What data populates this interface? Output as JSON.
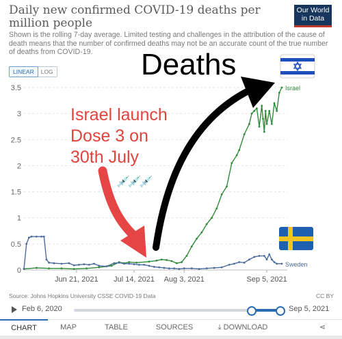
{
  "header": {
    "title": "Daily new confirmed COVID-19 deaths per million people",
    "subtitle": "Shown is the rolling 7-day average. Limited testing and challenges in the attribution of the cause of death means that the number of confirmed deaths may not be an accurate count of the true number of deaths from COVID-19.",
    "logo_line1": "Our World",
    "logo_line2": "in Data"
  },
  "scale_toggle": {
    "linear": "LINEAR",
    "log": "LOG",
    "selected": "LINEAR"
  },
  "chart_data": {
    "type": "line",
    "title": "Daily new confirmed COVID-19 deaths per million people",
    "ylim": [
      0,
      3.5
    ],
    "y_ticks": [
      "0",
      "0.5",
      "1",
      "1.5",
      "2",
      "2.5",
      "3",
      "3.5"
    ],
    "x_ticks": [
      {
        "label": "Jun 21, 2021",
        "day": 21
      },
      {
        "label": "Jul 14, 2021",
        "day": 44
      },
      {
        "label": "Aug 3, 2021",
        "day": 64
      },
      {
        "label": "Sep 5, 2021",
        "day": 97
      }
    ],
    "x_range_days": [
      0,
      97
    ],
    "x_range_labels": [
      "Jun 1, 2021",
      "Sep 5, 2021"
    ],
    "grid": true,
    "series": [
      {
        "name": "Israel",
        "color": "#2e8b3a",
        "points": [
          [
            0,
            0.02
          ],
          [
            5,
            0.04
          ],
          [
            10,
            0.03
          ],
          [
            15,
            0.03
          ],
          [
            20,
            0.02
          ],
          [
            25,
            0.03
          ],
          [
            30,
            0.05
          ],
          [
            35,
            0.08
          ],
          [
            38,
            0.15
          ],
          [
            40,
            0.13
          ],
          [
            42,
            0.15
          ],
          [
            45,
            0.14
          ],
          [
            50,
            0.16
          ],
          [
            53,
            0.18
          ],
          [
            55,
            0.2
          ],
          [
            57,
            0.19
          ],
          [
            59,
            0.17
          ],
          [
            61,
            0.13
          ],
          [
            63,
            0.15
          ],
          [
            65,
            0.27
          ],
          [
            67,
            0.45
          ],
          [
            69,
            0.6
          ],
          [
            71,
            0.72
          ],
          [
            73,
            0.88
          ],
          [
            75,
            1.0
          ],
          [
            77,
            1.18
          ],
          [
            79,
            1.45
          ],
          [
            81,
            1.6
          ],
          [
            83,
            2.05
          ],
          [
            85,
            2.2
          ],
          [
            86,
            2.3
          ],
          [
            88,
            2.6
          ],
          [
            90,
            2.8
          ],
          [
            91,
            3.0
          ],
          [
            92,
            3.05
          ],
          [
            93,
            3.1
          ],
          [
            94,
            2.75
          ],
          [
            95,
            3.15
          ],
          [
            95.5,
            2.9
          ],
          [
            96,
            2.65
          ],
          [
            96.5,
            3.05
          ],
          [
            97,
            2.8
          ],
          [
            98,
            3.05
          ],
          [
            99,
            2.8
          ],
          [
            100,
            3.2
          ],
          [
            101,
            3.05
          ],
          [
            102,
            3.4
          ],
          [
            103,
            3.5
          ]
        ]
      },
      {
        "name": "Sweden",
        "color": "#4c6a9c",
        "points": [
          [
            0,
            0.02
          ],
          [
            1,
            0.5
          ],
          [
            2,
            0.62
          ],
          [
            3,
            0.64
          ],
          [
            5,
            0.64
          ],
          [
            7,
            0.64
          ],
          [
            8,
            0.64
          ],
          [
            9,
            0.2
          ],
          [
            10,
            0.14
          ],
          [
            12,
            0.13
          ],
          [
            15,
            0.12
          ],
          [
            18,
            0.13
          ],
          [
            20,
            0.09
          ],
          [
            22,
            0.1
          ],
          [
            24,
            0.11
          ],
          [
            26,
            0.1
          ],
          [
            28,
            0.12
          ],
          [
            30,
            0.08
          ],
          [
            33,
            0.07
          ],
          [
            36,
            0.13
          ],
          [
            38,
            0.14
          ],
          [
            40,
            0.12
          ],
          [
            42,
            0.12
          ],
          [
            44,
            0.11
          ],
          [
            46,
            0.1
          ],
          [
            48,
            0.1
          ],
          [
            50,
            0.08
          ],
          [
            52,
            0.06
          ],
          [
            54,
            0.05
          ],
          [
            56,
            0.04
          ],
          [
            58,
            0.03
          ],
          [
            60,
            0.03
          ],
          [
            62,
            0.02
          ],
          [
            64,
            0.03
          ],
          [
            67,
            0.03
          ],
          [
            70,
            0.02
          ],
          [
            73,
            0.03
          ],
          [
            76,
            0.04
          ],
          [
            79,
            0.05
          ],
          [
            82,
            0.1
          ],
          [
            84,
            0.12
          ],
          [
            86,
            0.15
          ],
          [
            88,
            0.14
          ],
          [
            90,
            0.2
          ],
          [
            92,
            0.25
          ],
          [
            94,
            0.27
          ],
          [
            96,
            0.27
          ],
          [
            97,
            0.2
          ],
          [
            98,
            0.3
          ],
          [
            99,
            0.2
          ],
          [
            100,
            0.15
          ],
          [
            101,
            0.12
          ],
          [
            103,
            0.12
          ]
        ]
      }
    ]
  },
  "annotations": {
    "deaths": "Deaths",
    "launch": [
      "Israel launch",
      "Dose 3 on",
      "30th July"
    ],
    "syringes": "💉💉💉",
    "israel_flag": "flag-israel",
    "sweden_flag": "flag-sweden"
  },
  "footer": {
    "source": "Source: Johns Hopkins University CSSE COVID-19 Data",
    "license": "CC BY"
  },
  "timeline": {
    "start": "Feb 6, 2020",
    "end": "Sep 5, 2021",
    "selected_fraction_start": 0.86,
    "selected_fraction_end": 1.0
  },
  "tabs": [
    {
      "label": "CHART",
      "active": true
    },
    {
      "label": "MAP",
      "active": false
    },
    {
      "label": "TABLE",
      "active": false
    },
    {
      "label": "SOURCES",
      "active": false
    },
    {
      "label": "DOWNLOAD",
      "active": false
    }
  ],
  "colors": {
    "accent": "#2b6cb0",
    "israel": "#2e8b3a",
    "sweden": "#4c6a9c",
    "annotation_red": "#e0443e"
  }
}
